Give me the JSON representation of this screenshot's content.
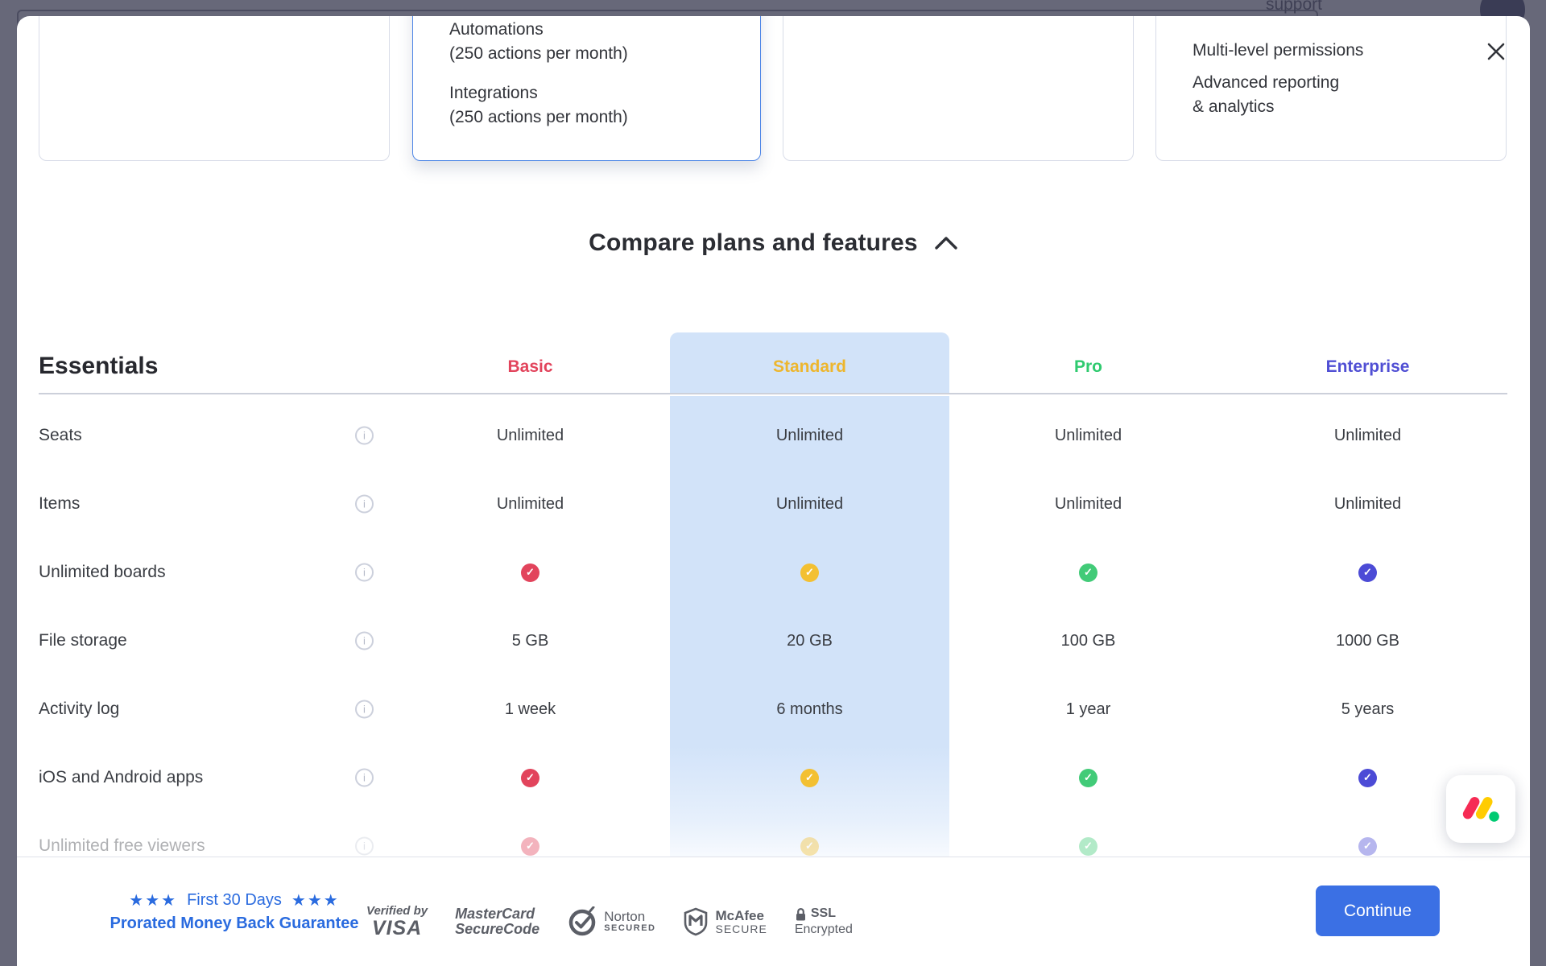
{
  "backdrop": {
    "bg_color": "#676879"
  },
  "top_cards": {
    "standard_card": {
      "lines": [
        "Automations",
        "(250 actions per month)",
        "Integrations",
        "(250 actions per month)"
      ],
      "border_color": "#4e86e6"
    },
    "enterprise_card": {
      "clipped_text": "support",
      "lines": [
        "Multi-level permissions",
        "Advanced reporting",
        "& analytics"
      ]
    }
  },
  "compare": {
    "title": "Compare plans and features",
    "collapse_icon": "chevron-up"
  },
  "table": {
    "section_title": "Essentials",
    "highlight_bg": "#d2e3f9",
    "highlighted_column": "Standard",
    "columns": [
      {
        "label": "Basic",
        "color": "#e2445c"
      },
      {
        "label": "Standard",
        "color": "#edb62e"
      },
      {
        "label": "Pro",
        "color": "#2fca6f"
      },
      {
        "label": "Enterprise",
        "color": "#504fd4"
      }
    ],
    "check_colors": [
      "#e2445c",
      "#f3c032",
      "#42cb78",
      "#4c4bd6"
    ],
    "check_glyph": "✓",
    "info_glyph": "i",
    "rows": [
      {
        "label": "Seats",
        "type": "text",
        "values": [
          "Unlimited",
          "Unlimited",
          "Unlimited",
          "Unlimited"
        ]
      },
      {
        "label": "Items",
        "type": "text",
        "values": [
          "Unlimited",
          "Unlimited",
          "Unlimited",
          "Unlimited"
        ]
      },
      {
        "label": "Unlimited boards",
        "type": "check"
      },
      {
        "label": "File storage",
        "type": "text",
        "values": [
          "5 GB",
          "20 GB",
          "100 GB",
          "1000 GB"
        ]
      },
      {
        "label": "Activity log",
        "type": "text",
        "values": [
          "1 week",
          "6 months",
          "1 year",
          "5 years"
        ]
      },
      {
        "label": "iOS and Android apps",
        "type": "check"
      },
      {
        "label": "Unlimited free viewers",
        "type": "check",
        "faded": true
      }
    ]
  },
  "footer": {
    "guarantee": {
      "stars": "★★★",
      "line1": "First 30 Days",
      "line2": "Prorated Money Back Guarantee",
      "color": "#2a6bdf"
    },
    "badges": [
      {
        "line1": "Verified by",
        "line2": "VISA"
      },
      {
        "line1": "MasterCard",
        "line2": "SecureCode"
      },
      {
        "line1": "Norton",
        "line2": "SECURED"
      },
      {
        "line1": "McAfee",
        "line2": "SECURE"
      },
      {
        "line1": "SSL",
        "line2": "Encrypted"
      }
    ],
    "continue_label": "Continue"
  },
  "brand": {
    "name": "monday-logo",
    "red": "#f62b54",
    "yellow": "#ffcc00",
    "green": "#00ca72"
  }
}
